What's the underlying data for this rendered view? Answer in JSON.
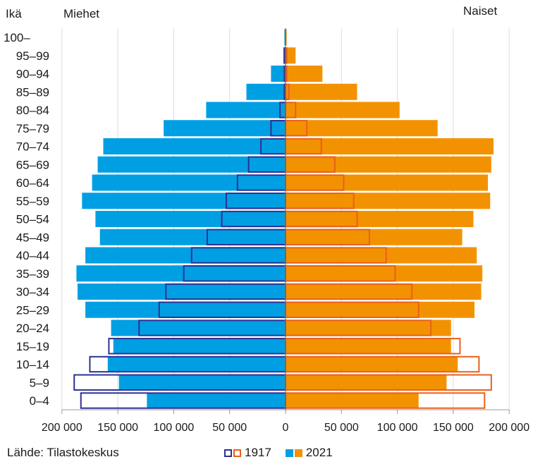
{
  "chart_data": {
    "type": "bar",
    "subtype": "population-pyramid",
    "title": "",
    "ylabel": "Ikä",
    "left_label": "Miehet",
    "right_label": "Naiset",
    "source": "Lähde: Tilastokeskus",
    "xlim": [
      -200000,
      200000
    ],
    "x_ticks": [
      -200000,
      -150000,
      -100000,
      -50000,
      0,
      50000,
      100000,
      150000,
      200000
    ],
    "x_tick_labels": [
      "200 000",
      "150 000",
      "100 000",
      "50 000",
      "0",
      "50 000",
      "100 000",
      "150 000",
      "200 000"
    ],
    "grid": "vertical",
    "legend_placement": "bottom",
    "categories": [
      "100–",
      "95–99",
      "90–94",
      "85–89",
      "80–84",
      "75–79",
      "70–74",
      "65–69",
      "60–64",
      "55–59",
      "50–54",
      "45–49",
      "40–44",
      "35–39",
      "30–34",
      "25–29",
      "20–24",
      "15–19",
      "10–14",
      "5–9",
      "0–4"
    ],
    "series": [
      {
        "name": "1917",
        "sex": "Miehet",
        "style": "outline",
        "color": "#2e3192",
        "values": [
          0,
          1000,
          1000,
          1000,
          5000,
          13000,
          22000,
          33000,
          43000,
          53000,
          57000,
          70000,
          84000,
          91000,
          107000,
          113000,
          131000,
          158000,
          175000,
          189000,
          183000
        ]
      },
      {
        "name": "1917",
        "sex": "Naiset",
        "style": "outline",
        "color": "#e8601c",
        "values": [
          0,
          1000,
          1000,
          3000,
          9000,
          19000,
          32000,
          44000,
          52000,
          61000,
          64000,
          75000,
          90000,
          98000,
          113000,
          119000,
          130000,
          156000,
          173000,
          184000,
          178000
        ]
      },
      {
        "name": "2021",
        "sex": "Miehet",
        "style": "filled",
        "color": "#009fe3",
        "values": [
          1000,
          2000,
          13000,
          35000,
          71000,
          109000,
          163000,
          168000,
          173000,
          182000,
          170000,
          166000,
          179000,
          187000,
          186000,
          179000,
          156000,
          154000,
          159000,
          149000,
          124000
        ]
      },
      {
        "name": "2021",
        "sex": "Naiset",
        "style": "filled",
        "color": "#f39200",
        "values": [
          1000,
          9000,
          33000,
          64000,
          102000,
          136000,
          186000,
          184000,
          181000,
          183000,
          168000,
          158000,
          171000,
          176000,
          175000,
          169000,
          148000,
          148000,
          154000,
          144000,
          119000
        ]
      }
    ]
  },
  "legend": {
    "items": [
      {
        "label": "1917",
        "style": "outline",
        "colors": [
          "#2e3192",
          "#e8601c"
        ]
      },
      {
        "label": "2021",
        "style": "filled",
        "colors": [
          "#009fe3",
          "#f39200"
        ]
      }
    ]
  },
  "colors": {
    "male_2021": "#009fe3",
    "female_2021": "#f39200",
    "male_1917": "#2e3192",
    "female_1917": "#e8601c",
    "grid": "#dddddd",
    "axis": "#999999"
  }
}
